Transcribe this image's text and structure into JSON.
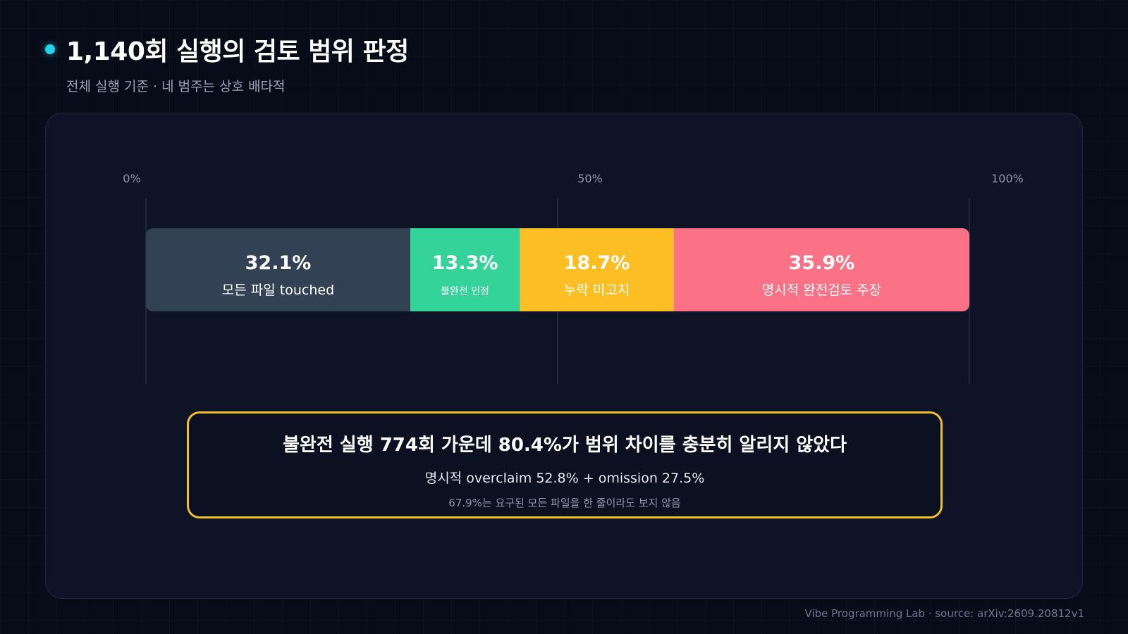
{
  "header": {
    "title": "1,140회 실행의 검토 범위 판정",
    "subtitle": "전체 실행 기준 · 네 범주는 상호 배타적"
  },
  "chart_data": {
    "type": "bar",
    "orientation": "horizontal-stacked",
    "axis_ticks": [
      "0%",
      "50%",
      "100%"
    ],
    "xlim": [
      0,
      100
    ],
    "grid": true,
    "segments": [
      {
        "value": 32.1,
        "value_label": "32.1%",
        "label": "모든 파일 touched",
        "color": "#334155",
        "text_color": "#ffffff"
      },
      {
        "value": 13.3,
        "value_label": "13.3%",
        "label": "불완전 인정",
        "color": "#34d399",
        "text_color": "#ffffff"
      },
      {
        "value": 18.7,
        "value_label": "18.7%",
        "label": "누락 미고지",
        "color": "#fbbf24",
        "text_color": "#ffffff"
      },
      {
        "value": 35.9,
        "value_label": "35.9%",
        "label": "명시적 완전검토 주장",
        "color": "#fb7185",
        "text_color": "#ffffff"
      }
    ]
  },
  "callout": {
    "headline": "불완전 실행 774회 가운데 80.4%가 범위 차이를 충분히 알리지 않았다",
    "detail": "명시적 overclaim 52.8% + omission 27.5%",
    "note": "67.9%는 요구된 모든 파일을 한 줄이라도 보지 않음",
    "border_color": "#f4c02a"
  },
  "footer": {
    "text": "Vibe Programming Lab · source: arXiv:2609.20812v1"
  },
  "colors": {
    "accent": "#22d3ee",
    "background": "#080c18",
    "panel": "#0e1426"
  }
}
